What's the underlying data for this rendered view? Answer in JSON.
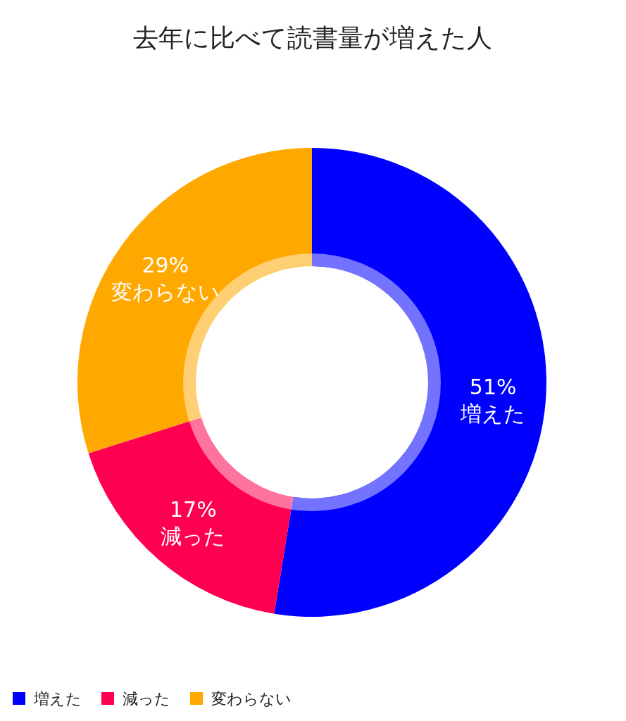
{
  "chart_data": {
    "type": "donut",
    "title": "去年に比べて読書量が増えた人",
    "categories": [
      "増えた",
      "減った",
      "変わらない"
    ],
    "values": [
      51,
      17,
      29
    ],
    "value_labels": [
      "51%",
      "17%",
      "29%"
    ],
    "colors": [
      "#0000ff",
      "#ff0050",
      "#ffa800"
    ],
    "legend": "bottom left"
  }
}
